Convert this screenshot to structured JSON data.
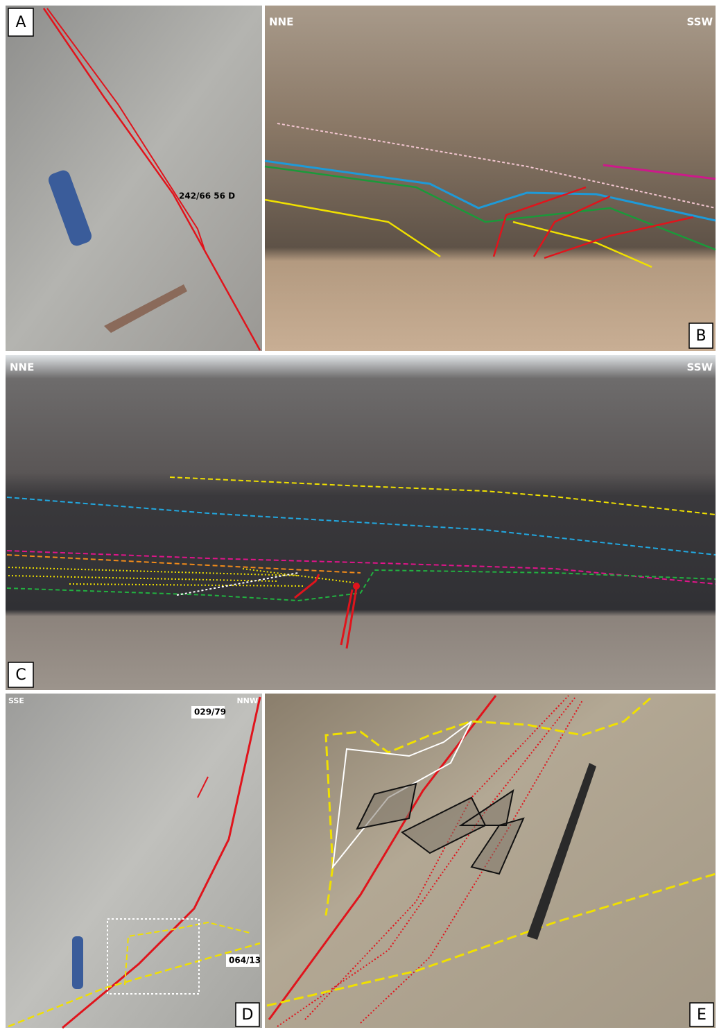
{
  "panels": [
    {
      "label": "A",
      "annotations": [
        "242/66 56 D"
      ]
    },
    {
      "label": "B",
      "orientation": [
        "NNE",
        "SSW"
      ]
    },
    {
      "label": "C",
      "orientation": [
        "NNE",
        "SSW"
      ]
    },
    {
      "label": "D",
      "orientation": [
        "SSE",
        "NNW"
      ],
      "annotations": [
        "029/79",
        "064/13"
      ]
    },
    {
      "label": "E"
    }
  ]
}
